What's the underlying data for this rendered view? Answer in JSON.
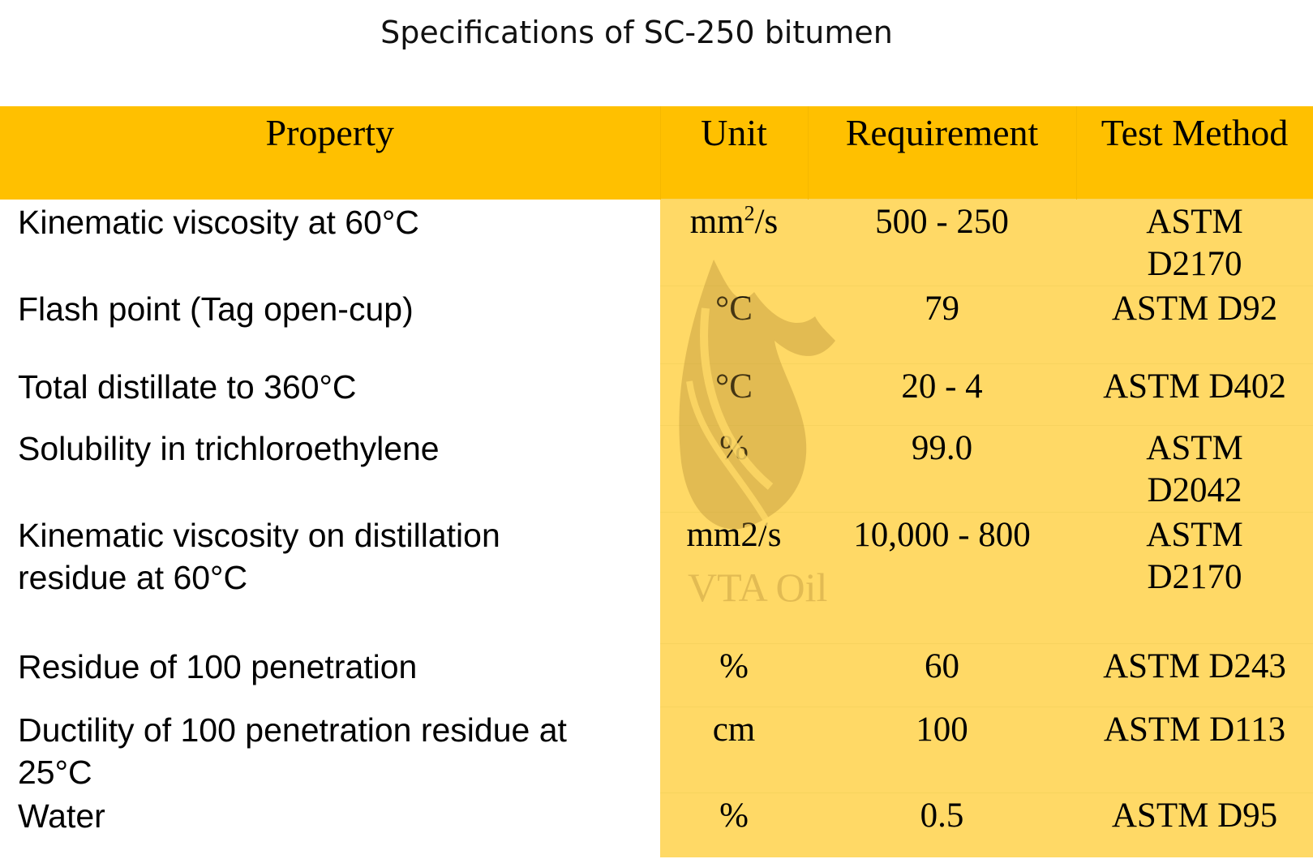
{
  "title": "Specifications of SC-250 bitumen",
  "watermark": {
    "text": "VTA Oil",
    "icon": "flame-bird-logo"
  },
  "colors": {
    "header": "#FFC000",
    "body": "#FFD966"
  },
  "table": {
    "headers": [
      "Property",
      "Unit",
      "Requirement",
      "Test Method"
    ],
    "rows": [
      {
        "property": "Kinematic viscosity at 60°C",
        "unit_base": "mm",
        "unit_sup": "2",
        "unit_tail": "/s",
        "requirement": "500 - 250",
        "method": "ASTM D2170"
      },
      {
        "property": "Flash point (Tag open-cup)",
        "unit": "°C",
        "requirement": "79",
        "method": "ASTM D92"
      },
      {
        "property": "Total distillate to 360°C",
        "unit": "°C",
        "requirement": "20 - 4",
        "method": "ASTM D402"
      },
      {
        "property": "Solubility in trichloroethylene",
        "unit": "%",
        "requirement": "99.0",
        "method": "ASTM D2042"
      },
      {
        "property": "Kinematic viscosity on distillation residue at 60°C",
        "unit": "mm2/s",
        "requirement": "10,000 - 800",
        "method": "ASTM D2170"
      },
      {
        "property": "Residue of 100 penetration",
        "unit": "%",
        "requirement": "60",
        "method": "ASTM D243"
      },
      {
        "property": "Ductility of 100 penetration residue at 25°C",
        "unit": "cm",
        "requirement": "100",
        "method": "ASTM D113"
      },
      {
        "property": "Water",
        "unit": "%",
        "requirement": "0.5",
        "method": "ASTM D95"
      }
    ]
  }
}
